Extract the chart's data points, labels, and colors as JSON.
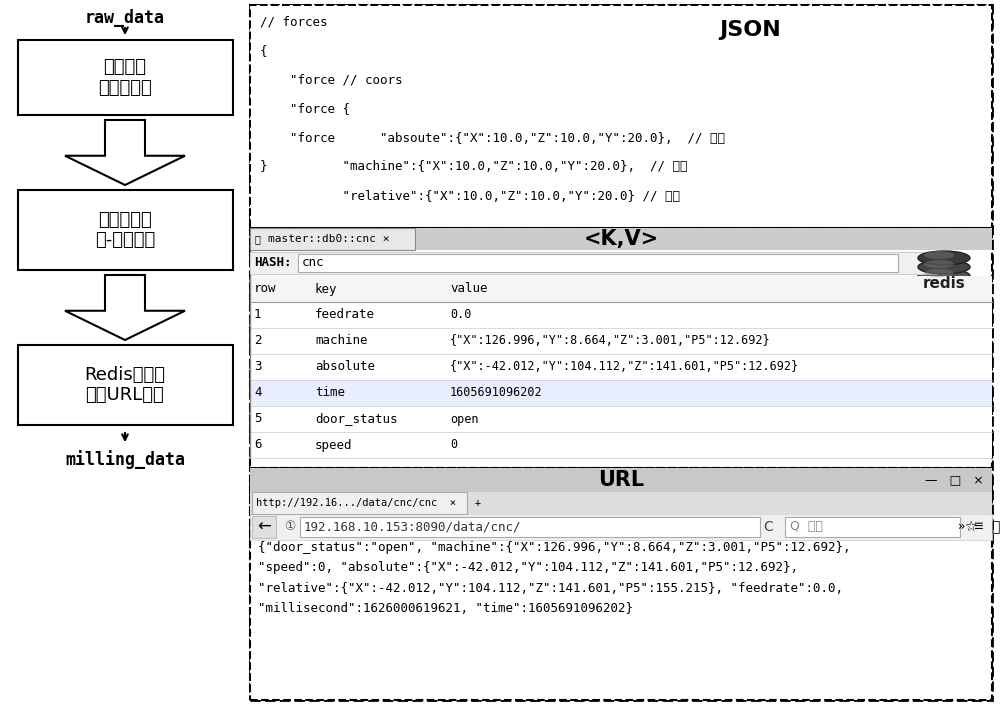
{
  "bg_color": "#ffffff",
  "left_panel": {
    "raw_data": "raw_data",
    "box1": "传输格式\n标准化处理",
    "box2": "标准化数据\n键-值对存储",
    "box3": "Redis数据库\n数据URL映射",
    "milling_data": "milling_data"
  },
  "json_panel": {
    "title": "JSON",
    "lines": [
      "// forces",
      "{",
      "    \"force // coors",
      "    \"force {",
      "    \"force      \"absoute\":{\"X\":10.0,\"Z\":10.0,\"Y\":20.0},  // 绝对",
      "}          \"machine\":{\"X\":10.0,\"Z\":10.0,\"Y\":20.0},  // 机床",
      "           \"relative\":{\"X\":10.0,\"Z\":10.0,\"Y\":20.0} // 相对"
    ]
  },
  "kv_panel": {
    "title": "<K,V>",
    "tab_text": "master::db0::cnc ×",
    "hash_label": "HASH:",
    "hash_value": "cnc",
    "headers": [
      "row",
      "key",
      "value"
    ],
    "rows": [
      [
        "1",
        "feedrate",
        "0.0"
      ],
      [
        "2",
        "machine",
        "{\"X\":126.996,\"Y\":8.664,\"Z\":3.001,\"P5\":12.692}"
      ],
      [
        "3",
        "absolute",
        "{\"X\":-42.012,\"Y\":104.112,\"Z\":141.601,\"P5\":12.692}"
      ],
      [
        "4",
        "time",
        "1605691096202"
      ],
      [
        "5",
        "door_status",
        "open"
      ],
      [
        "6",
        "speed",
        "0"
      ]
    ]
  },
  "url_panel": {
    "title": "URL",
    "tab_text": "http://192.16.../data/cnc/cnc  ×   +",
    "address": "192.168.10.153:8090/data/cnc/",
    "content_lines": [
      "{\"door_status\":\"open\", \"machine\":{\"X\":126.996,\"Y\":8.664,\"Z\":3.001,\"P5\":12.692},",
      "\"speed\":0, \"absolute\":{\"X\":-42.012,\"Y\":104.112,\"Z\":141.601,\"P5\":12.692},",
      "\"relative\":{\"X\":-42.012,\"Y\":104.112,\"Z\":141.601,\"P5\":155.215}, \"feedrate\":0.0,",
      "\"millisecond\":1626000619621, \"time\":1605691096202}"
    ]
  }
}
